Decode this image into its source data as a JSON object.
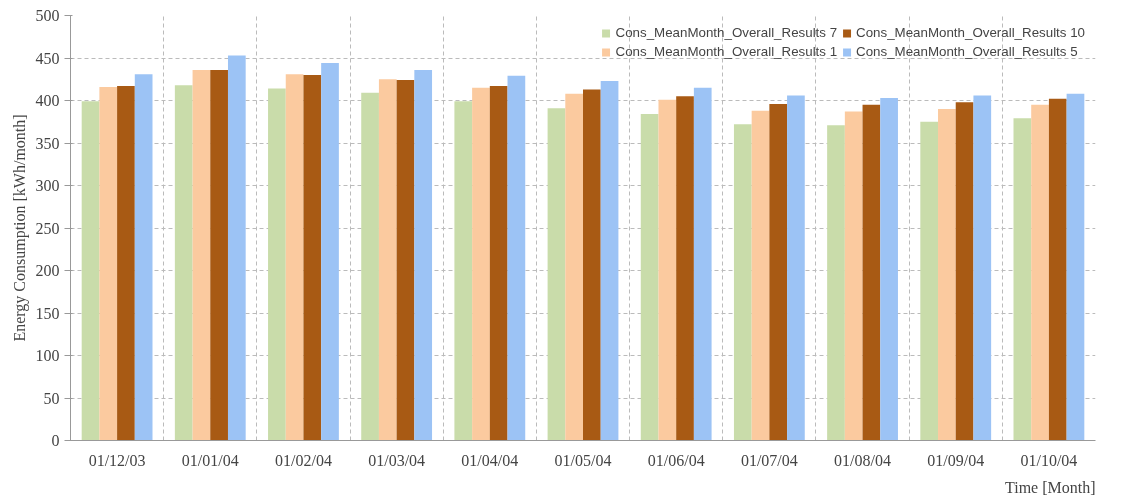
{
  "chart_data": {
    "type": "bar",
    "xlabel": "Time [Month]",
    "ylabel": "Energy Consumption [kWh/month]",
    "categories": [
      "01/12/03",
      "01/01/04",
      "01/02/04",
      "01/03/04",
      "01/04/04",
      "01/05/04",
      "01/06/04",
      "01/07/04",
      "01/08/04",
      "01/09/04",
      "01/10/04"
    ],
    "series": [
      {
        "name": "Cons_MeanMonth_Overall_Results 7",
        "color": "#c9dcaa",
        "values": [
          399,
          418,
          414,
          409,
          399,
          391,
          384,
          372,
          371,
          375,
          379
        ]
      },
      {
        "name": "Cons_MeanMonth_Overall_Results 1",
        "color": "#fbca9f",
        "values": [
          416,
          436,
          431,
          425,
          415,
          408,
          401,
          388,
          387,
          390,
          395
        ]
      },
      {
        "name": "Cons_MeanMonth_Overall_Results 10",
        "color": "#a85a14",
        "values": [
          417,
          436,
          430,
          424,
          417,
          413,
          405,
          396,
          395,
          398,
          402
        ]
      },
      {
        "name": "Cons_MeanMonth_Overall_Results 5",
        "color": "#9cc3f5",
        "values": [
          431,
          453,
          444,
          436,
          429,
          423,
          415,
          406,
          403,
          406,
          408
        ]
      }
    ],
    "ylim": [
      0,
      500
    ],
    "yticks": [
      0,
      50,
      100,
      150,
      200,
      250,
      300,
      350,
      400,
      450,
      500
    ],
    "grid": true,
    "legend": "top right"
  }
}
